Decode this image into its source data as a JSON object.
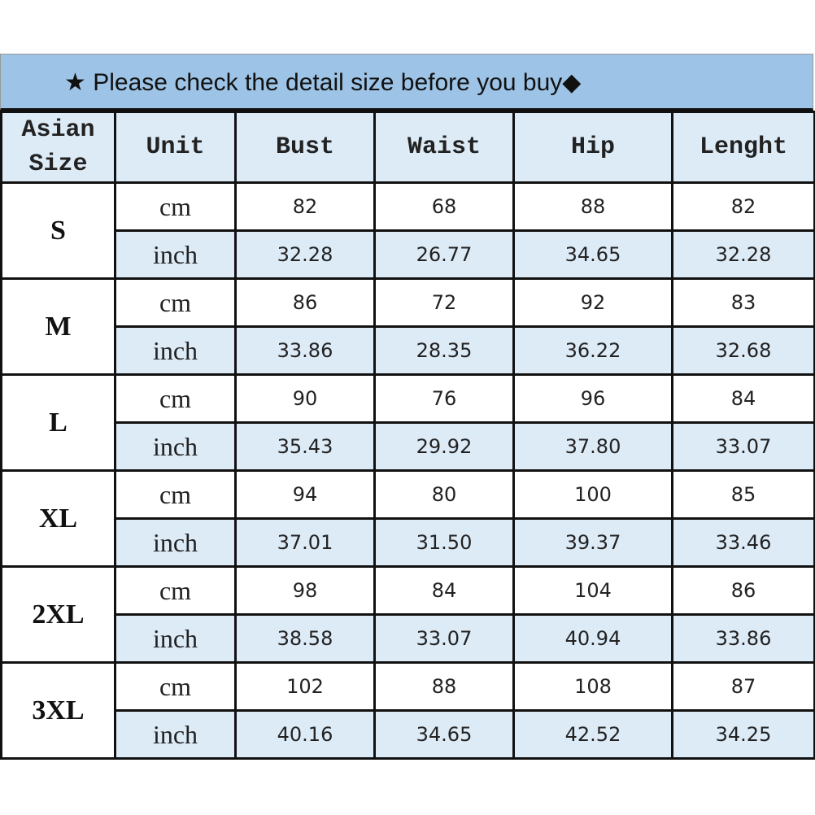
{
  "title": {
    "star": "★",
    "text": "Please check the detail size before you buy",
    "diamond": "◆"
  },
  "headers": [
    "Asian Size",
    "Unit",
    "Bust",
    "Waist",
    "Hip",
    "Lenght"
  ],
  "colors": {
    "title_bg": "#9dc3e6",
    "header_bg": "#ddebf7",
    "inch_row_bg": "#ddebf7",
    "grid": "#111111"
  },
  "rows": [
    {
      "size": "S",
      "cm": {
        "unit": "cm",
        "values": [
          "82",
          "68",
          "88",
          "82"
        ]
      },
      "inch": {
        "unit": "inch",
        "values": [
          "32.28",
          "26.77",
          "34.65",
          "32.28"
        ]
      }
    },
    {
      "size": "M",
      "cm": {
        "unit": "cm",
        "values": [
          "86",
          "72",
          "92",
          "83"
        ]
      },
      "inch": {
        "unit": "inch",
        "values": [
          "33.86",
          "28.35",
          "36.22",
          "32.68"
        ]
      }
    },
    {
      "size": "L",
      "cm": {
        "unit": "cm",
        "values": [
          "90",
          "76",
          "96",
          "84"
        ]
      },
      "inch": {
        "unit": "inch",
        "values": [
          "35.43",
          "29.92",
          "37.80",
          "33.07"
        ]
      }
    },
    {
      "size": "XL",
      "cm": {
        "unit": "cm",
        "values": [
          "94",
          "80",
          "100",
          "85"
        ]
      },
      "inch": {
        "unit": "inch",
        "values": [
          "37.01",
          "31.50",
          "39.37",
          "33.46"
        ]
      }
    },
    {
      "size": "2XL",
      "cm": {
        "unit": "cm",
        "values": [
          "98",
          "84",
          "104",
          "86"
        ]
      },
      "inch": {
        "unit": "inch",
        "values": [
          "38.58",
          "33.07",
          "40.94",
          "33.86"
        ]
      }
    },
    {
      "size": "3XL",
      "cm": {
        "unit": "cm",
        "values": [
          "102",
          "88",
          "108",
          "87"
        ]
      },
      "inch": {
        "unit": "inch",
        "values": [
          "40.16",
          "34.65",
          "42.52",
          "34.25"
        ]
      }
    }
  ]
}
